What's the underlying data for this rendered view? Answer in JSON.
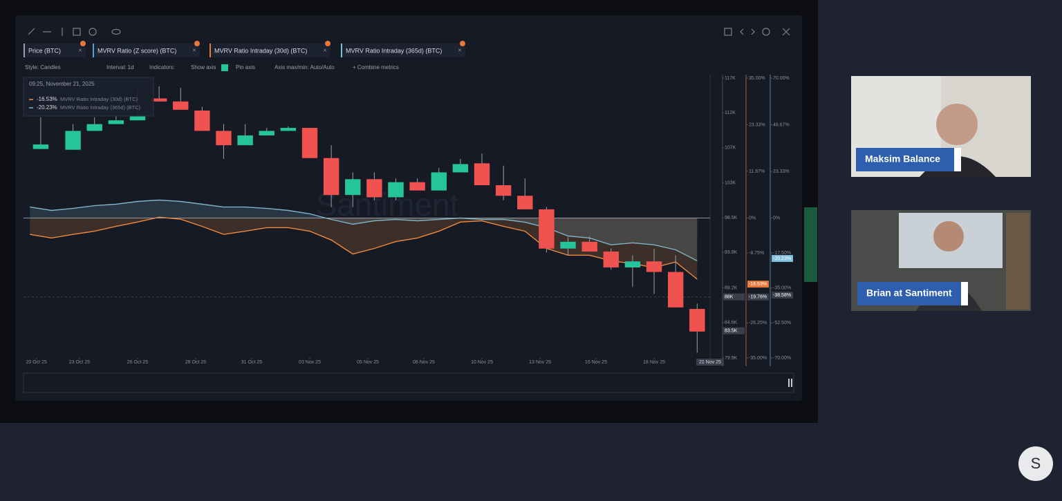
{
  "tabs": [
    "Price (BTC)",
    "MVRV Ratio (Z score) (BTC)",
    "MVRV Ratio Intraday (30d) (BTC)",
    "MVRV Ratio Intraday (365d) (BTC)"
  ],
  "toolbar": [
    "Style: Candles",
    "Interval: 1d",
    "Indicators:",
    "Show axis",
    "Pin axis",
    "Axis max/min: Auto/Auto",
    "+ Combine metrics"
  ],
  "watermark": "Santiment",
  "participants": [
    "Maksim Balance",
    "Brian at Santiment"
  ],
  "logo": "S",
  "chart_data": {
    "type": "candlestick",
    "tooltip": {
      "time": "09:25, November 21, 2025",
      "value_labels": [
        "-16.53%",
        "-20.23%"
      ]
    },
    "x": [
      0.5,
      2,
      3,
      4,
      5,
      6,
      7,
      8,
      9,
      10,
      11,
      12,
      13,
      14,
      15,
      16,
      17,
      18,
      19,
      20,
      21,
      22,
      23,
      24,
      25,
      26,
      27,
      28,
      29,
      30,
      31
    ],
    "open": [
      107.6,
      107.5,
      110.0,
      110.9,
      111.4,
      114.3,
      113.9,
      112.7,
      110.0,
      108.1,
      109.4,
      110.0,
      110.4,
      106.4,
      101.5,
      103.6,
      101.2,
      103.2,
      102.1,
      104.5,
      105.7,
      102.8,
      101.4,
      99.6,
      94.4,
      95.3,
      94.0,
      91.9,
      92.7,
      91.3,
      86.4
    ],
    "high": [
      111.8,
      110.9,
      111.8,
      112.2,
      115.4,
      115.9,
      115.7,
      113.2,
      110.9,
      110.9,
      110.4,
      110.6,
      110.4,
      108.1,
      104.5,
      104.5,
      103.7,
      103.7,
      105.1,
      106.3,
      107.0,
      105.4,
      103.7,
      99.9,
      95.9,
      96.0,
      94.4,
      93.5,
      94.4,
      93.5,
      87.1
    ],
    "low": [
      107.6,
      107.5,
      110.0,
      110.9,
      111.4,
      113.9,
      112.8,
      110.0,
      106.3,
      108.1,
      109.4,
      110.0,
      106.4,
      99.9,
      99.9,
      100.8,
      100.8,
      102.1,
      102.1,
      104.5,
      102.8,
      100.8,
      99.6,
      93.9,
      93.5,
      94.0,
      91.6,
      89.3,
      88.4,
      86.6,
      80.6
    ],
    "close": [
      108.2,
      110.0,
      110.9,
      111.4,
      112.1,
      113.9,
      112.8,
      110.0,
      108.1,
      109.4,
      110.0,
      110.4,
      106.4,
      101.5,
      103.6,
      101.2,
      103.2,
      102.1,
      104.5,
      105.6,
      102.8,
      101.4,
      99.6,
      94.4,
      95.3,
      94.0,
      91.9,
      92.7,
      91.3,
      86.6,
      83.4
    ],
    "up_color": "#26c49a",
    "down_color": "#f0524f",
    "xlim": [
      -0.3,
      31.6
    ],
    "xticks": [
      {
        "value": 0.3,
        "label": "20 Oct 25"
      },
      {
        "value": 2.3,
        "label": "23 Oct 25"
      },
      {
        "value": 5,
        "label": "26 Oct 25"
      },
      {
        "value": 7.7,
        "label": "28 Oct 25"
      },
      {
        "value": 10.3,
        "label": "31 Oct 25"
      },
      {
        "value": 13,
        "label": "03 Nov 25"
      },
      {
        "value": 15.7,
        "label": "05 Nov 25"
      },
      {
        "value": 18.3,
        "label": "08 Nov 25"
      },
      {
        "value": 21,
        "label": "10 Nov 25"
      },
      {
        "value": 23.7,
        "label": "13 Nov 25"
      },
      {
        "value": 26.3,
        "label": "16 Nov 25"
      },
      {
        "value": 29,
        "label": "18 Nov 25"
      },
      {
        "value": 31.6,
        "label": "21 Nov 25"
      }
    ],
    "ylim": [
      79.9,
      117
    ],
    "yticks": [
      {
        "value": 117,
        "label": "117K"
      },
      {
        "value": 112.4,
        "label": "112K"
      },
      {
        "value": 107.8,
        "label": "107K"
      },
      {
        "value": 103.1,
        "label": "103K"
      },
      {
        "value": 98.5,
        "label": "98.5K"
      },
      {
        "value": 93.9,
        "label": "93.9K"
      },
      {
        "value": 89.2,
        "label": "89.2K"
      },
      {
        "value": 84.6,
        "label": "84.6K"
      },
      {
        "value": 79.9,
        "label": "79.9K"
      }
    ],
    "y2lim": [
      -35,
      35
    ],
    "y2ticks": [
      {
        "value": 35,
        "label": "35.00%"
      },
      {
        "value": 23.33,
        "label": "23.33%"
      },
      {
        "value": 11.67,
        "label": "11.67%"
      },
      {
        "value": 0,
        "label": "0%"
      },
      {
        "value": -8.75,
        "label": "-8.75%"
      },
      {
        "value": -26.25,
        "label": "-26.25%"
      },
      {
        "value": -35,
        "label": "-35.00%"
      }
    ],
    "y3lim": [
      -70,
      70
    ],
    "y3ticks": [
      {
        "value": 70,
        "label": "70.00%"
      },
      {
        "value": 46.67,
        "label": "46.67%"
      },
      {
        "value": 23.33,
        "label": "23.33%"
      },
      {
        "value": 0,
        "label": "0%"
      },
      {
        "value": -17.5,
        "label": "-17.50%"
      },
      {
        "value": -35,
        "label": "-35.00%"
      },
      {
        "value": -52.5,
        "label": "-52.50%"
      },
      {
        "value": -70,
        "label": "-70.00%"
      }
    ],
    "badges": [
      {
        "axis": "y",
        "value": 88,
        "label": "88K",
        "color": "#3a3f4b"
      },
      {
        "axis": "y",
        "value": 83.5,
        "label": "83.5K",
        "color": "#3a3f4b"
      },
      {
        "axis": "y2",
        "value": -16.53,
        "label": "-16.53%",
        "color": "#e8793a"
      },
      {
        "axis": "y2",
        "value": -19.76,
        "label": "-19.76%",
        "color": "#3a3f4b"
      },
      {
        "axis": "y3",
        "value": -20.23,
        "label": "-20.23%",
        "color": "#7fc0dc"
      },
      {
        "axis": "y3",
        "value": -38.58,
        "label": "-38.58%",
        "color": "#3a3f4b"
      }
    ],
    "series": [
      {
        "name": "MVRV Ratio Intraday (30d) (BTC)",
        "color": "#f08a3c",
        "axis": "y2",
        "x": [
          0,
          1,
          2,
          3,
          4,
          5,
          6,
          7,
          8,
          9,
          10,
          11,
          12,
          13,
          14,
          15,
          16,
          17,
          18,
          19,
          20,
          21,
          22,
          23,
          24,
          25,
          26,
          27,
          28,
          29,
          30,
          31
        ],
        "values": [
          -4.1,
          -5.0,
          -4.1,
          -3.3,
          -2.1,
          -1.0,
          0.2,
          -0.3,
          -2.1,
          -4.1,
          -3.3,
          -2.4,
          -2.4,
          -3.3,
          -5.5,
          -9.0,
          -7.6,
          -5.9,
          -5.0,
          -3.3,
          -1.0,
          -0.7,
          -2.1,
          -3.3,
          -7.6,
          -9.3,
          -9.3,
          -10.7,
          -11.4,
          -12.4,
          -11.0,
          -15.3
        ]
      },
      {
        "name": "MVRV Ratio Intraday (365d) (BTC)",
        "color": "#7fb3c8",
        "axis": "y3",
        "x": [
          0,
          1,
          2,
          3,
          4,
          5,
          6,
          7,
          8,
          9,
          10,
          11,
          12,
          13,
          14,
          15,
          16,
          17,
          18,
          19,
          20,
          21,
          22,
          23,
          24,
          25,
          26,
          27,
          28,
          29,
          30,
          31
        ],
        "values": [
          5.5,
          3.8,
          4.8,
          6.2,
          6.9,
          8.3,
          9.0,
          8.3,
          6.9,
          5.5,
          5.5,
          4.8,
          3.8,
          2.1,
          -0.7,
          -3.1,
          -1.4,
          -0.7,
          -1.4,
          -0.7,
          0,
          -0.7,
          -0.7,
          -2.1,
          -4.8,
          -9.0,
          -10.0,
          -13.4,
          -12.4,
          -13.4,
          -15.9,
          -21.4
        ]
      }
    ]
  }
}
